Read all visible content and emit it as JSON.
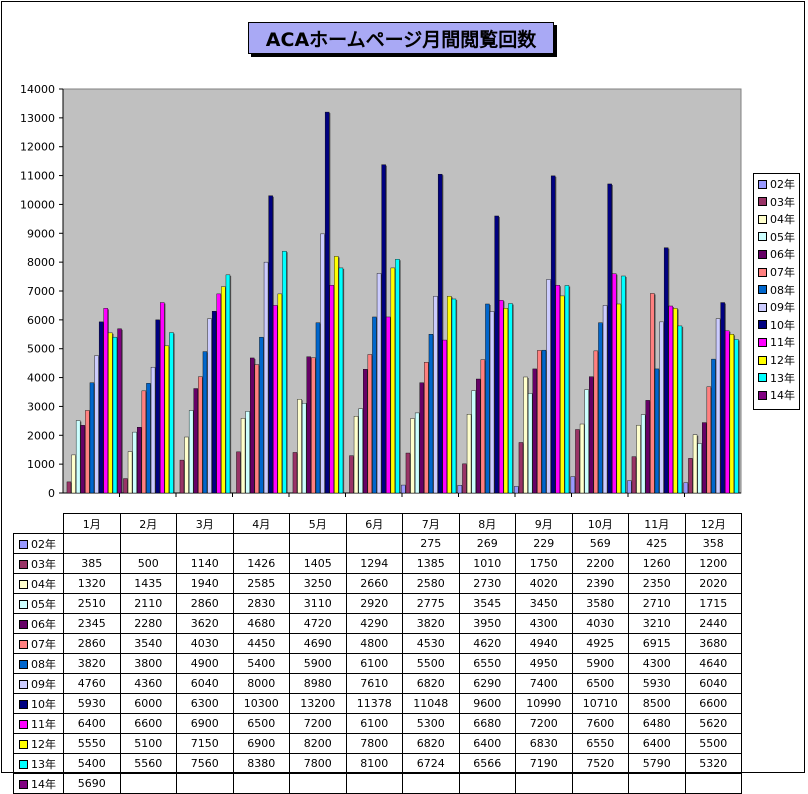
{
  "chart_data": {
    "type": "bar",
    "title": "ACAホームページ月間閲覧回数",
    "categories": [
      "1月",
      "2月",
      "3月",
      "4月",
      "5月",
      "6月",
      "7月",
      "8月",
      "9月",
      "10月",
      "11月",
      "12月"
    ],
    "ylim": [
      0,
      14000
    ],
    "yticks": [
      0,
      1000,
      2000,
      3000,
      4000,
      5000,
      6000,
      7000,
      8000,
      9000,
      10000,
      11000,
      12000,
      13000,
      14000
    ],
    "grid": false,
    "legend": "right",
    "series": [
      {
        "name": "02年",
        "color": "#9999ff",
        "values": [
          null,
          null,
          null,
          null,
          null,
          null,
          275,
          269,
          229,
          569,
          425,
          358
        ]
      },
      {
        "name": "03年",
        "color": "#993366",
        "values": [
          385,
          500,
          1140,
          1426,
          1405,
          1294,
          1385,
          1010,
          1750,
          2200,
          1260,
          1200
        ]
      },
      {
        "name": "04年",
        "color": "#ffffcc",
        "values": [
          1320,
          1435,
          1940,
          2585,
          3250,
          2660,
          2580,
          2730,
          4020,
          2390,
          2350,
          2020
        ]
      },
      {
        "name": "05年",
        "color": "#ccffff",
        "values": [
          2510,
          2110,
          2860,
          2830,
          3110,
          2920,
          2775,
          3545,
          3450,
          3580,
          2710,
          1715
        ]
      },
      {
        "name": "06年",
        "color": "#660066",
        "values": [
          2345,
          2280,
          3620,
          4680,
          4720,
          4290,
          3820,
          3950,
          4300,
          4030,
          3210,
          2440
        ]
      },
      {
        "name": "07年",
        "color": "#ff8080",
        "values": [
          2860,
          3540,
          4030,
          4450,
          4690,
          4800,
          4530,
          4620,
          4940,
          4925,
          6915,
          3680
        ]
      },
      {
        "name": "08年",
        "color": "#0066cc",
        "values": [
          3820,
          3800,
          4900,
          5400,
          5900,
          6100,
          5500,
          6550,
          4950,
          5900,
          4300,
          4640
        ]
      },
      {
        "name": "09年",
        "color": "#ccccff",
        "values": [
          4760,
          4360,
          6040,
          8000,
          8980,
          7610,
          6820,
          6290,
          7400,
          6500,
          5930,
          6040
        ]
      },
      {
        "name": "10年",
        "color": "#000080",
        "values": [
          5930,
          6000,
          6300,
          10300,
          13200,
          11378,
          11048,
          9600,
          10990,
          10710,
          8500,
          6600
        ]
      },
      {
        "name": "11年",
        "color": "#ff00ff",
        "values": [
          6400,
          6600,
          6900,
          6500,
          7200,
          6100,
          5300,
          6680,
          7200,
          7600,
          6480,
          5620
        ]
      },
      {
        "name": "12年",
        "color": "#ffff00",
        "values": [
          5550,
          5100,
          7150,
          6900,
          8200,
          7800,
          6820,
          6400,
          6830,
          6550,
          6400,
          5500
        ]
      },
      {
        "name": "13年",
        "color": "#00ffff",
        "values": [
          5400,
          5560,
          7560,
          8380,
          7800,
          8100,
          6724,
          6566,
          7190,
          7520,
          5790,
          5320
        ]
      },
      {
        "name": "14年",
        "color": "#800080",
        "values": [
          5690,
          null,
          null,
          null,
          null,
          null,
          null,
          null,
          null,
          null,
          null,
          null
        ]
      }
    ]
  }
}
